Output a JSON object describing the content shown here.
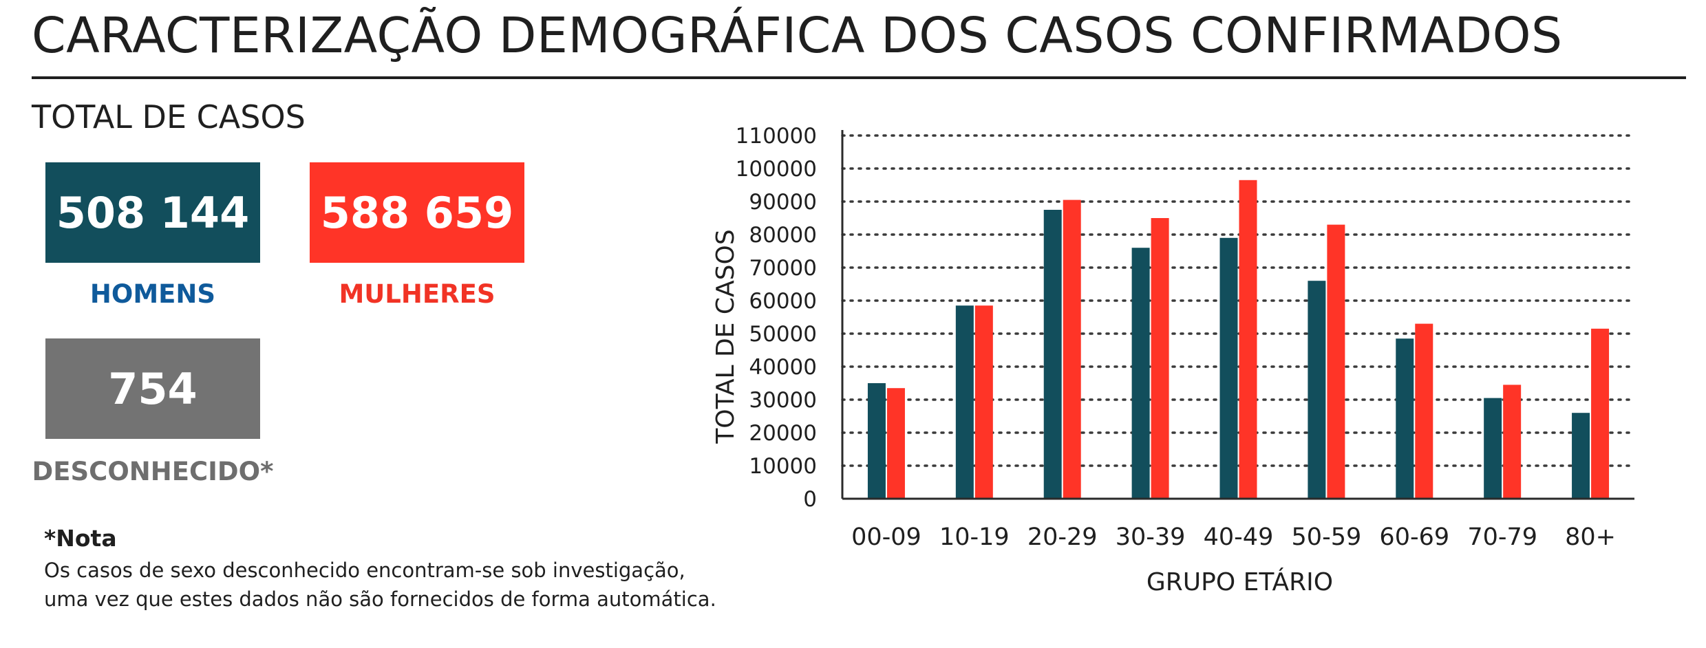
{
  "header": {
    "title": "CARACTERIZAÇÃO DEMOGRÁFICA DOS CASOS CONFIRMADOS"
  },
  "totals": {
    "section_title": "TOTAL DE CASOS",
    "men": {
      "value": "508 144",
      "label": "HOMENS"
    },
    "women": {
      "value": "588 659",
      "label": "MULHERES"
    },
    "unknown": {
      "value": "754",
      "label": "DESCONHECIDO*"
    }
  },
  "note": {
    "title": "*Nota",
    "line1": "Os casos de sexo desconhecido encontram-se sob investigação,",
    "line2": "uma vez que estes dados não são fornecidos de forma automática."
  },
  "colors": {
    "men": "#124e5c",
    "women": "#ff3427",
    "unknown": "#737373",
    "men_label": "#0f5a9b",
    "women_label": "#f13325",
    "unknown_label": "#6e6e6e"
  },
  "chart_data": {
    "type": "bar",
    "title": "",
    "xlabel": "GRUPO ETÁRIO",
    "ylabel": "TOTAL DE CASOS",
    "categories": [
      "00-09",
      "10-19",
      "20-29",
      "30-39",
      "40-49",
      "50-59",
      "60-69",
      "70-79",
      "80+"
    ],
    "series": [
      {
        "name": "HOMENS",
        "color": "#124e5c",
        "values": [
          35000,
          58500,
          87500,
          76000,
          79000,
          66000,
          48500,
          30500,
          26000
        ]
      },
      {
        "name": "MULHERES",
        "color": "#ff3427",
        "values": [
          33500,
          58500,
          90500,
          85000,
          96500,
          83000,
          53000,
          34500,
          51500
        ]
      }
    ],
    "ylim": [
      0,
      110000
    ],
    "yticks": [
      0,
      10000,
      20000,
      30000,
      40000,
      50000,
      60000,
      70000,
      80000,
      90000,
      100000,
      110000
    ],
    "grid": true,
    "grid_style": "dotted",
    "legend": "none"
  }
}
